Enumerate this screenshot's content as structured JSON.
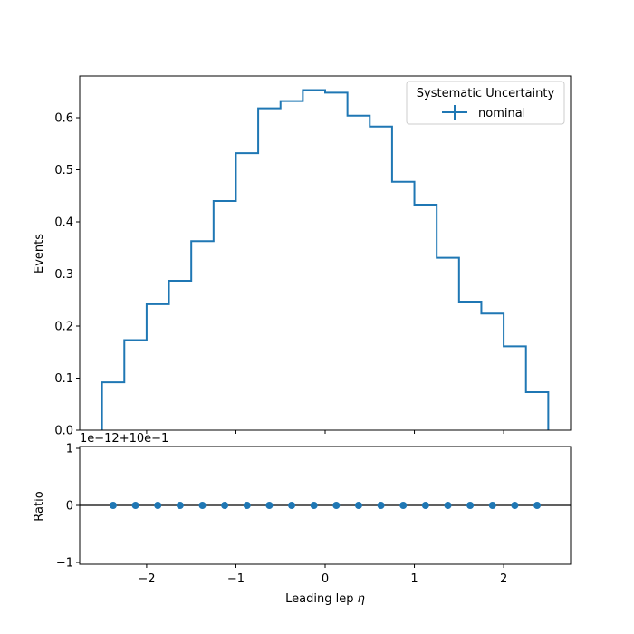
{
  "chart_data": {
    "type": "histogram-with-ratio",
    "main": {
      "ylabel": "Events",
      "ylim": [
        0,
        0.68
      ],
      "yticks": [
        "0.0",
        "0.1",
        "0.2",
        "0.3",
        "0.4",
        "0.5",
        "0.6"
      ],
      "bin_edges": [
        -2.5,
        -2.25,
        -2.0,
        -1.75,
        -1.5,
        -1.25,
        -1.0,
        -0.75,
        -0.5,
        -0.25,
        0.0,
        0.25,
        0.5,
        0.75,
        1.0,
        1.25,
        1.5,
        1.75,
        2.0,
        2.25,
        2.5
      ],
      "series": [
        {
          "name": "nominal",
          "color": "#1f77b4",
          "values": [
            0.092,
            0.173,
            0.242,
            0.287,
            0.363,
            0.44,
            0.532,
            0.618,
            0.632,
            0.653,
            0.648,
            0.604,
            0.583,
            0.477,
            0.433,
            0.331,
            0.247,
            0.224,
            0.161,
            0.073
          ]
        }
      ],
      "legend": {
        "title": "Systematic Uncertainty",
        "entries": [
          "nominal"
        ],
        "position": "top-right"
      }
    },
    "ratio": {
      "ylabel": "Ratio",
      "offset_text": "1e−12+10e−1",
      "yticks": [
        "−1",
        "0",
        "1"
      ],
      "ylim": [
        -1,
        1
      ],
      "reference_line": 0,
      "points_x": [
        -2.375,
        -2.125,
        -1.875,
        -1.625,
        -1.375,
        -1.125,
        -0.875,
        -0.625,
        -0.375,
        -0.125,
        0.125,
        0.375,
        0.625,
        0.875,
        1.125,
        1.375,
        1.625,
        1.875,
        2.125,
        2.375
      ],
      "points_y": [
        0,
        0,
        0,
        0,
        0,
        0,
        0,
        0,
        0,
        0,
        0,
        0,
        0,
        0,
        0,
        0,
        0,
        0,
        0,
        0
      ],
      "color": "#1f77b4"
    },
    "xaxis": {
      "label_prefix": "Leading lep ",
      "label_symbol": "η",
      "xlim": [
        -2.75,
        2.75
      ],
      "tick_values": [
        -2,
        -1,
        0,
        1,
        2
      ],
      "tick_labels": [
        "−2",
        "−1",
        "0",
        "1",
        "2"
      ]
    }
  }
}
